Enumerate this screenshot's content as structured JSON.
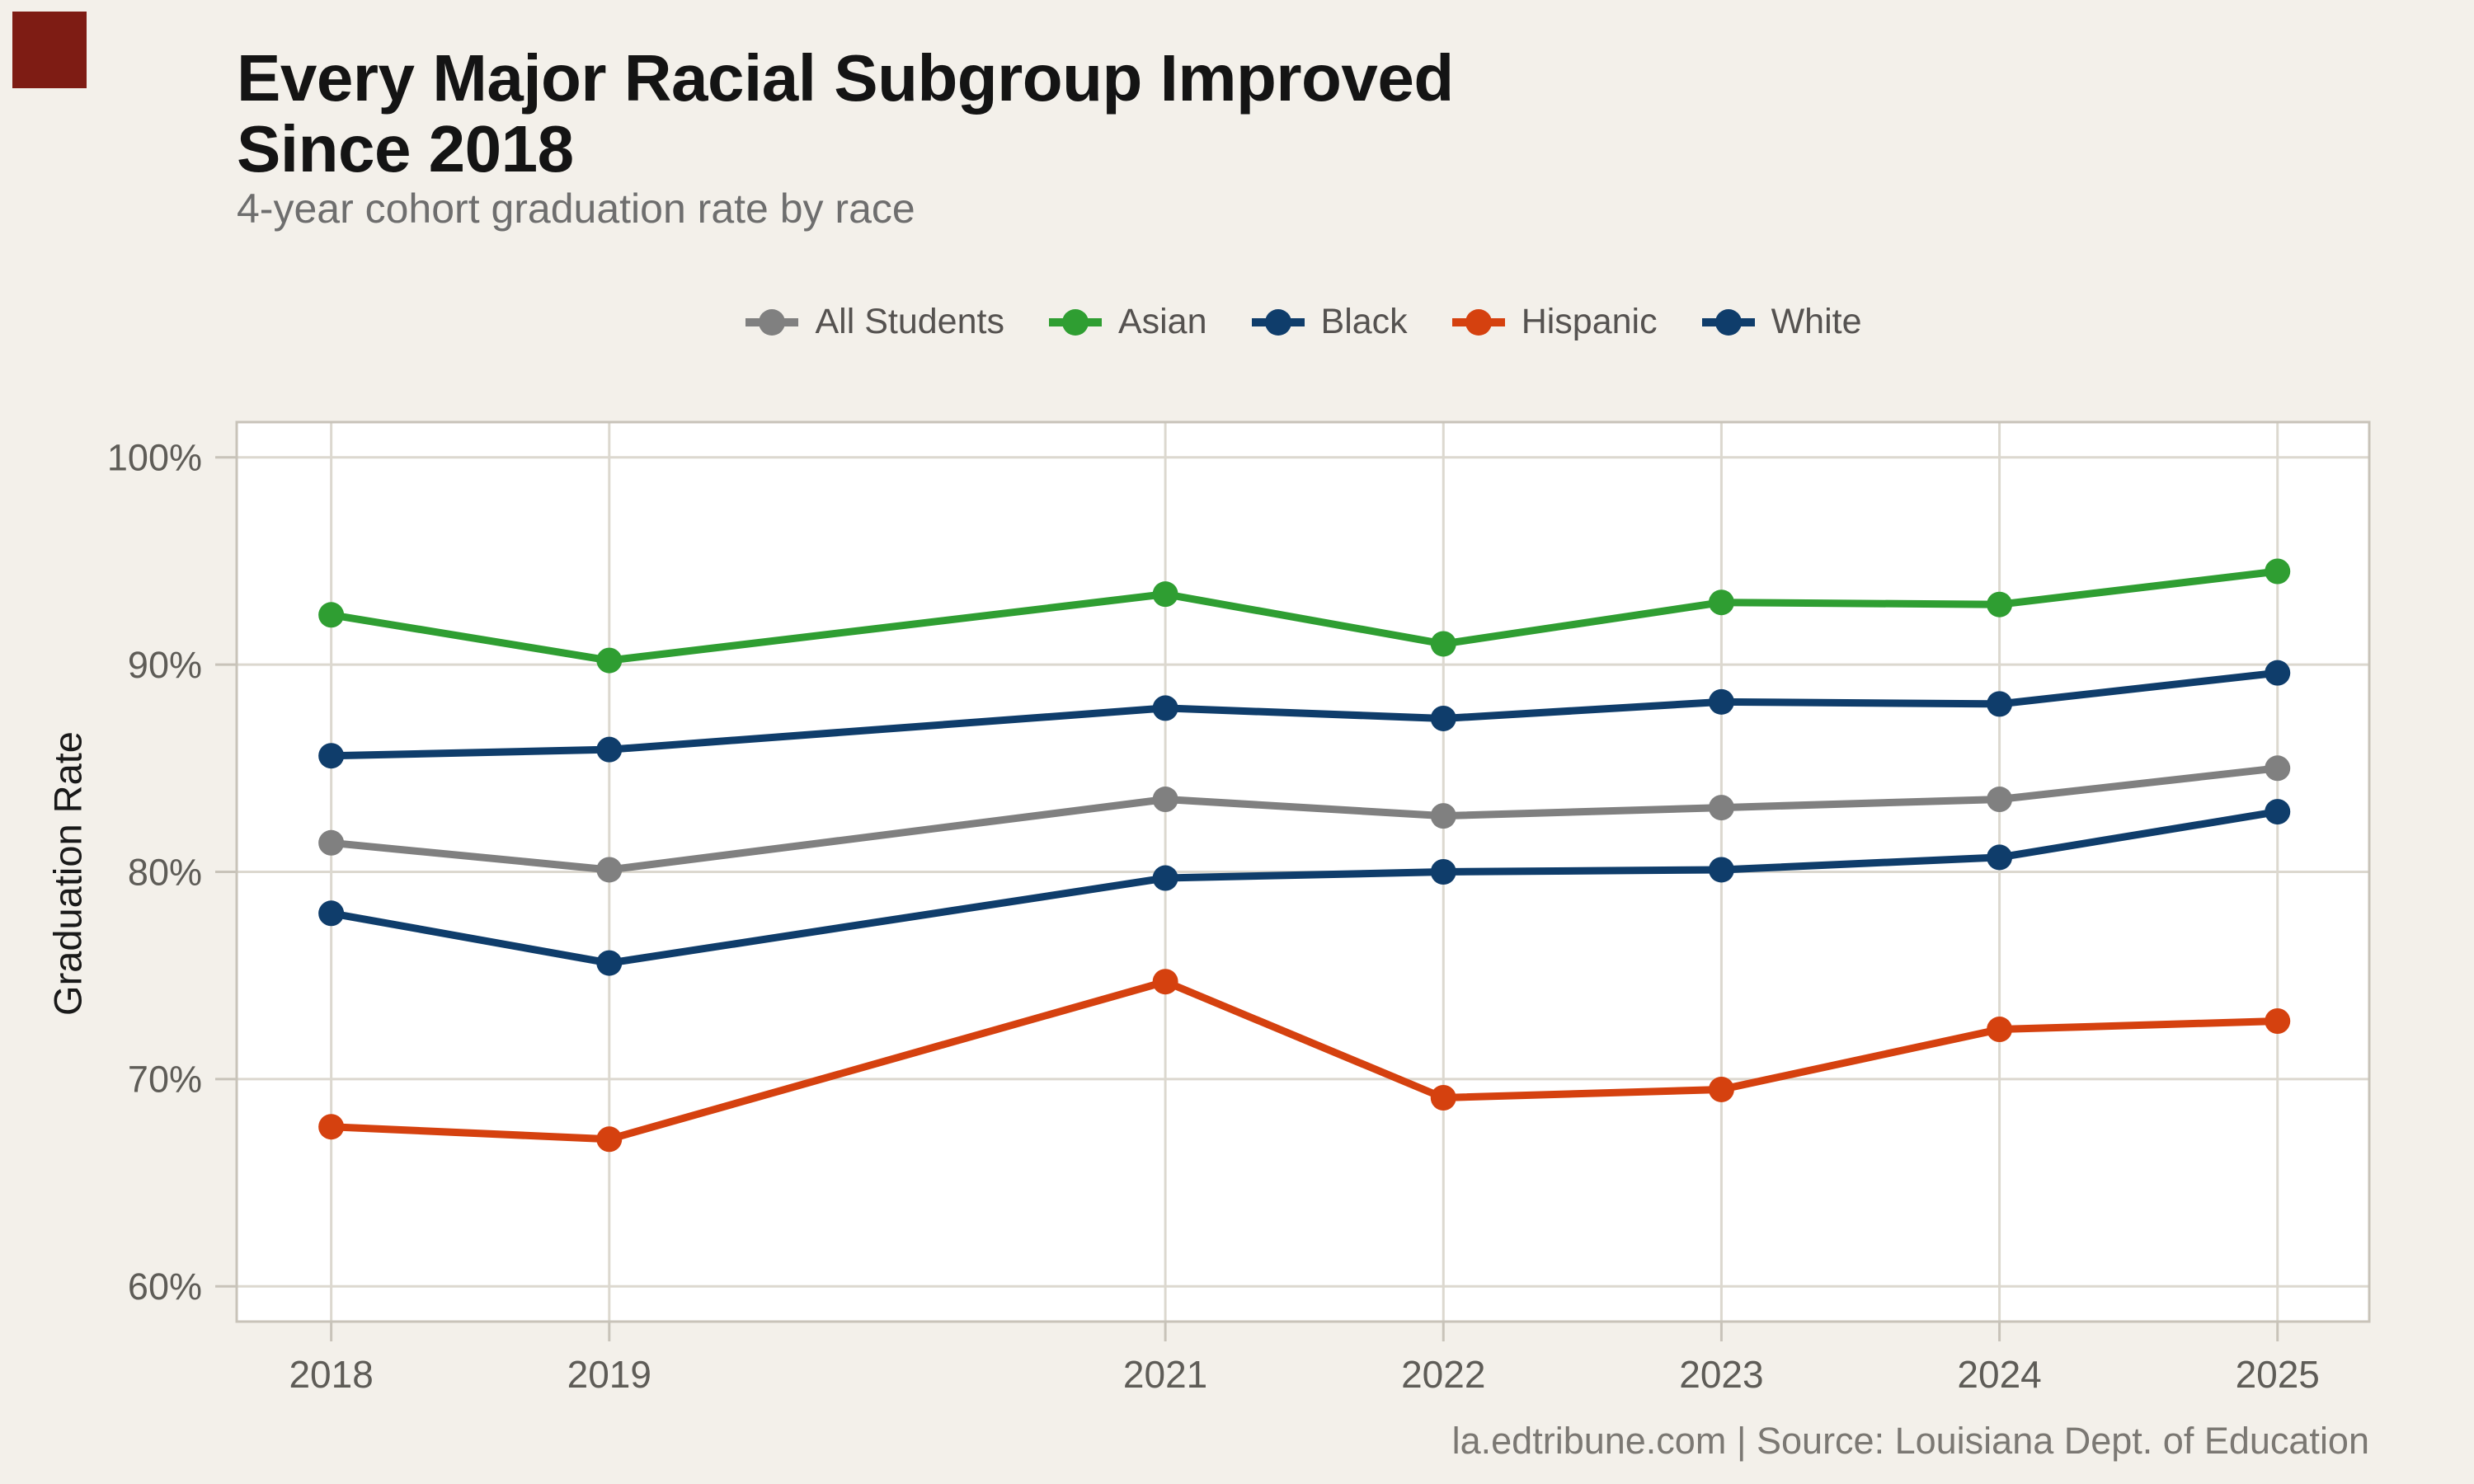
{
  "page": {
    "background_color": "#f3f0ea",
    "plot_background_color": "#ffffff",
    "gridline_color": "#dcd8cf",
    "axis_border_color": "#c8c3b9",
    "corner_mark_color": "#7e1c14"
  },
  "header": {
    "title_line1": "Every Major Racial Subgroup Improved",
    "title_line2": "Since 2018",
    "subtitle": "4-year cohort graduation rate by race"
  },
  "footer": {
    "text": "la.edtribune.com | Source: Louisiana Dept. of Education"
  },
  "chart_data": {
    "type": "line",
    "title": "Every Major Racial Subgroup Improved Since 2018",
    "subtitle": "4-year cohort graduation rate by race",
    "xlabel": "",
    "ylabel": "Graduation Rate",
    "x": [
      2018,
      2019,
      2021,
      2022,
      2023,
      2024,
      2025
    ],
    "x_tick_labels": [
      "2018",
      "2019",
      "2021",
      "2022",
      "2023",
      "2024",
      "2025"
    ],
    "y_ticks": [
      60,
      70,
      80,
      90,
      100
    ],
    "y_tick_labels": [
      "60%",
      "70%",
      "80%",
      "90%",
      "100%"
    ],
    "ylim": [
      58.3,
      101.7
    ],
    "xlim": [
      2017.66,
      2025.33
    ],
    "grid": true,
    "legend_position": "top",
    "series": [
      {
        "name": "All Students",
        "color": "#808080",
        "values": [
          81.4,
          80.1,
          83.5,
          82.7,
          83.1,
          83.5,
          85.0
        ]
      },
      {
        "name": "Asian",
        "color": "#2f9e32",
        "values": [
          92.4,
          90.2,
          93.4,
          91.0,
          93.0,
          92.9,
          94.5
        ]
      },
      {
        "name": "Black",
        "color": "#0f3d6b",
        "values": [
          78.0,
          75.6,
          79.7,
          80.0,
          80.1,
          80.7,
          82.9
        ]
      },
      {
        "name": "Hispanic",
        "color": "#d5410f",
        "values": [
          67.7,
          67.1,
          74.7,
          69.1,
          69.5,
          72.4,
          72.8
        ]
      },
      {
        "name": "White",
        "color": "#0f3d6b",
        "values": [
          85.6,
          85.9,
          87.9,
          87.4,
          88.2,
          88.1,
          89.6
        ]
      }
    ]
  }
}
